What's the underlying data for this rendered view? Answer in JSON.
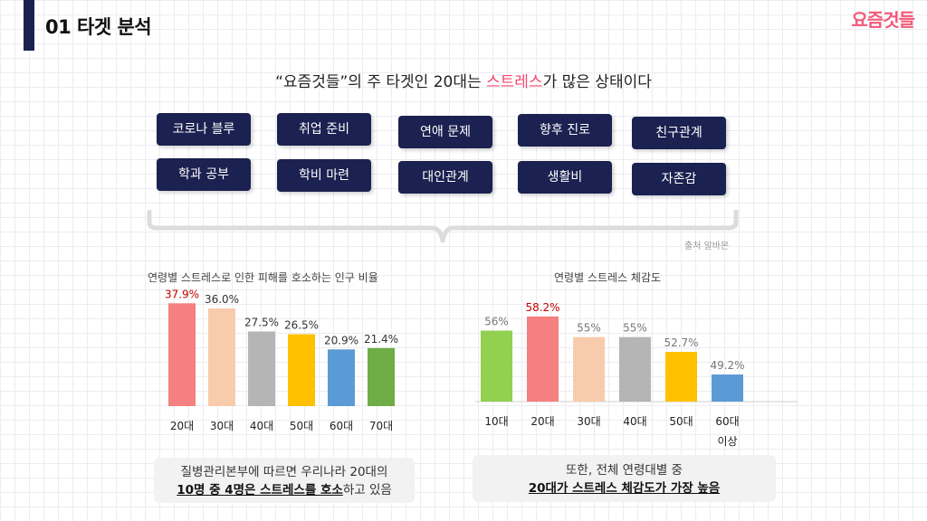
{
  "header": {
    "title": "01 타겟 분석",
    "logo": "요즘것들"
  },
  "headline": {
    "pre": "“요즘것들”의 주 타겟인 20대는 ",
    "highlight": "스트레스",
    "post": "가 많은 상태이다"
  },
  "tags": [
    {
      "label": "코로나 블루"
    },
    {
      "label": "취업 준비"
    },
    {
      "label": "연애 문제"
    },
    {
      "label": "향후 진로"
    },
    {
      "label": "친구관계"
    },
    {
      "label": "학과 공부"
    },
    {
      "label": "학비 마련"
    },
    {
      "label": "대인관계"
    },
    {
      "label": "생활비"
    },
    {
      "label": "자존감"
    }
  ],
  "source": "출처 알바몬",
  "chart_data": [
    {
      "type": "bar",
      "title": "연령별 스트레스로 인한 피해를 호소하는 인구 비율",
      "categories": [
        "20대",
        "30대",
        "40대",
        "50대",
        "60대",
        "70대"
      ],
      "values": [
        37.9,
        36.0,
        27.5,
        26.5,
        20.9,
        21.4
      ],
      "labels": [
        "37.9%",
        "36.0%",
        "27.5%",
        "26.5%",
        "20.9%",
        "21.4%"
      ],
      "colors": [
        "#f4807f",
        "#f8cbad",
        "#b5b5b5",
        "#ffc000",
        "#5b9bd5",
        "#70ad47"
      ],
      "label_colors": [
        "#c00000",
        "#333333",
        "#333333",
        "#333333",
        "#333333",
        "#333333"
      ],
      "ylim": [
        0,
        40
      ],
      "grid": false
    },
    {
      "type": "bar",
      "title": "연령별 스트레스 체감도",
      "categories": [
        "10대",
        "20대",
        "30대",
        "40대",
        "50대",
        "60대 이상"
      ],
      "values": [
        56,
        58.2,
        55,
        55,
        52.7,
        49.2
      ],
      "labels": [
        "56%",
        "58.2%",
        "55%",
        "55%",
        "52.7%",
        "49.2%"
      ],
      "colors": [
        "#92d050",
        "#f4807f",
        "#f8cbad",
        "#b5b5b5",
        "#ffc000",
        "#5b9bd5"
      ],
      "label_colors": [
        "#777777",
        "#c00000",
        "#777777",
        "#777777",
        "#777777",
        "#777777"
      ],
      "ylim": [
        45,
        60
      ],
      "grid": false
    }
  ],
  "notes": {
    "left": {
      "line1": "질병관리본부에 따르면 우리나라 20대의",
      "line2_bold": "10명 중 4명은 스트레스를 호소",
      "line2_rest": "하고 있음"
    },
    "right": {
      "line1": "또한, 전체 연령대별 중",
      "line2_bold": "20대가 스트레스 체감도가 가장 높음"
    }
  }
}
